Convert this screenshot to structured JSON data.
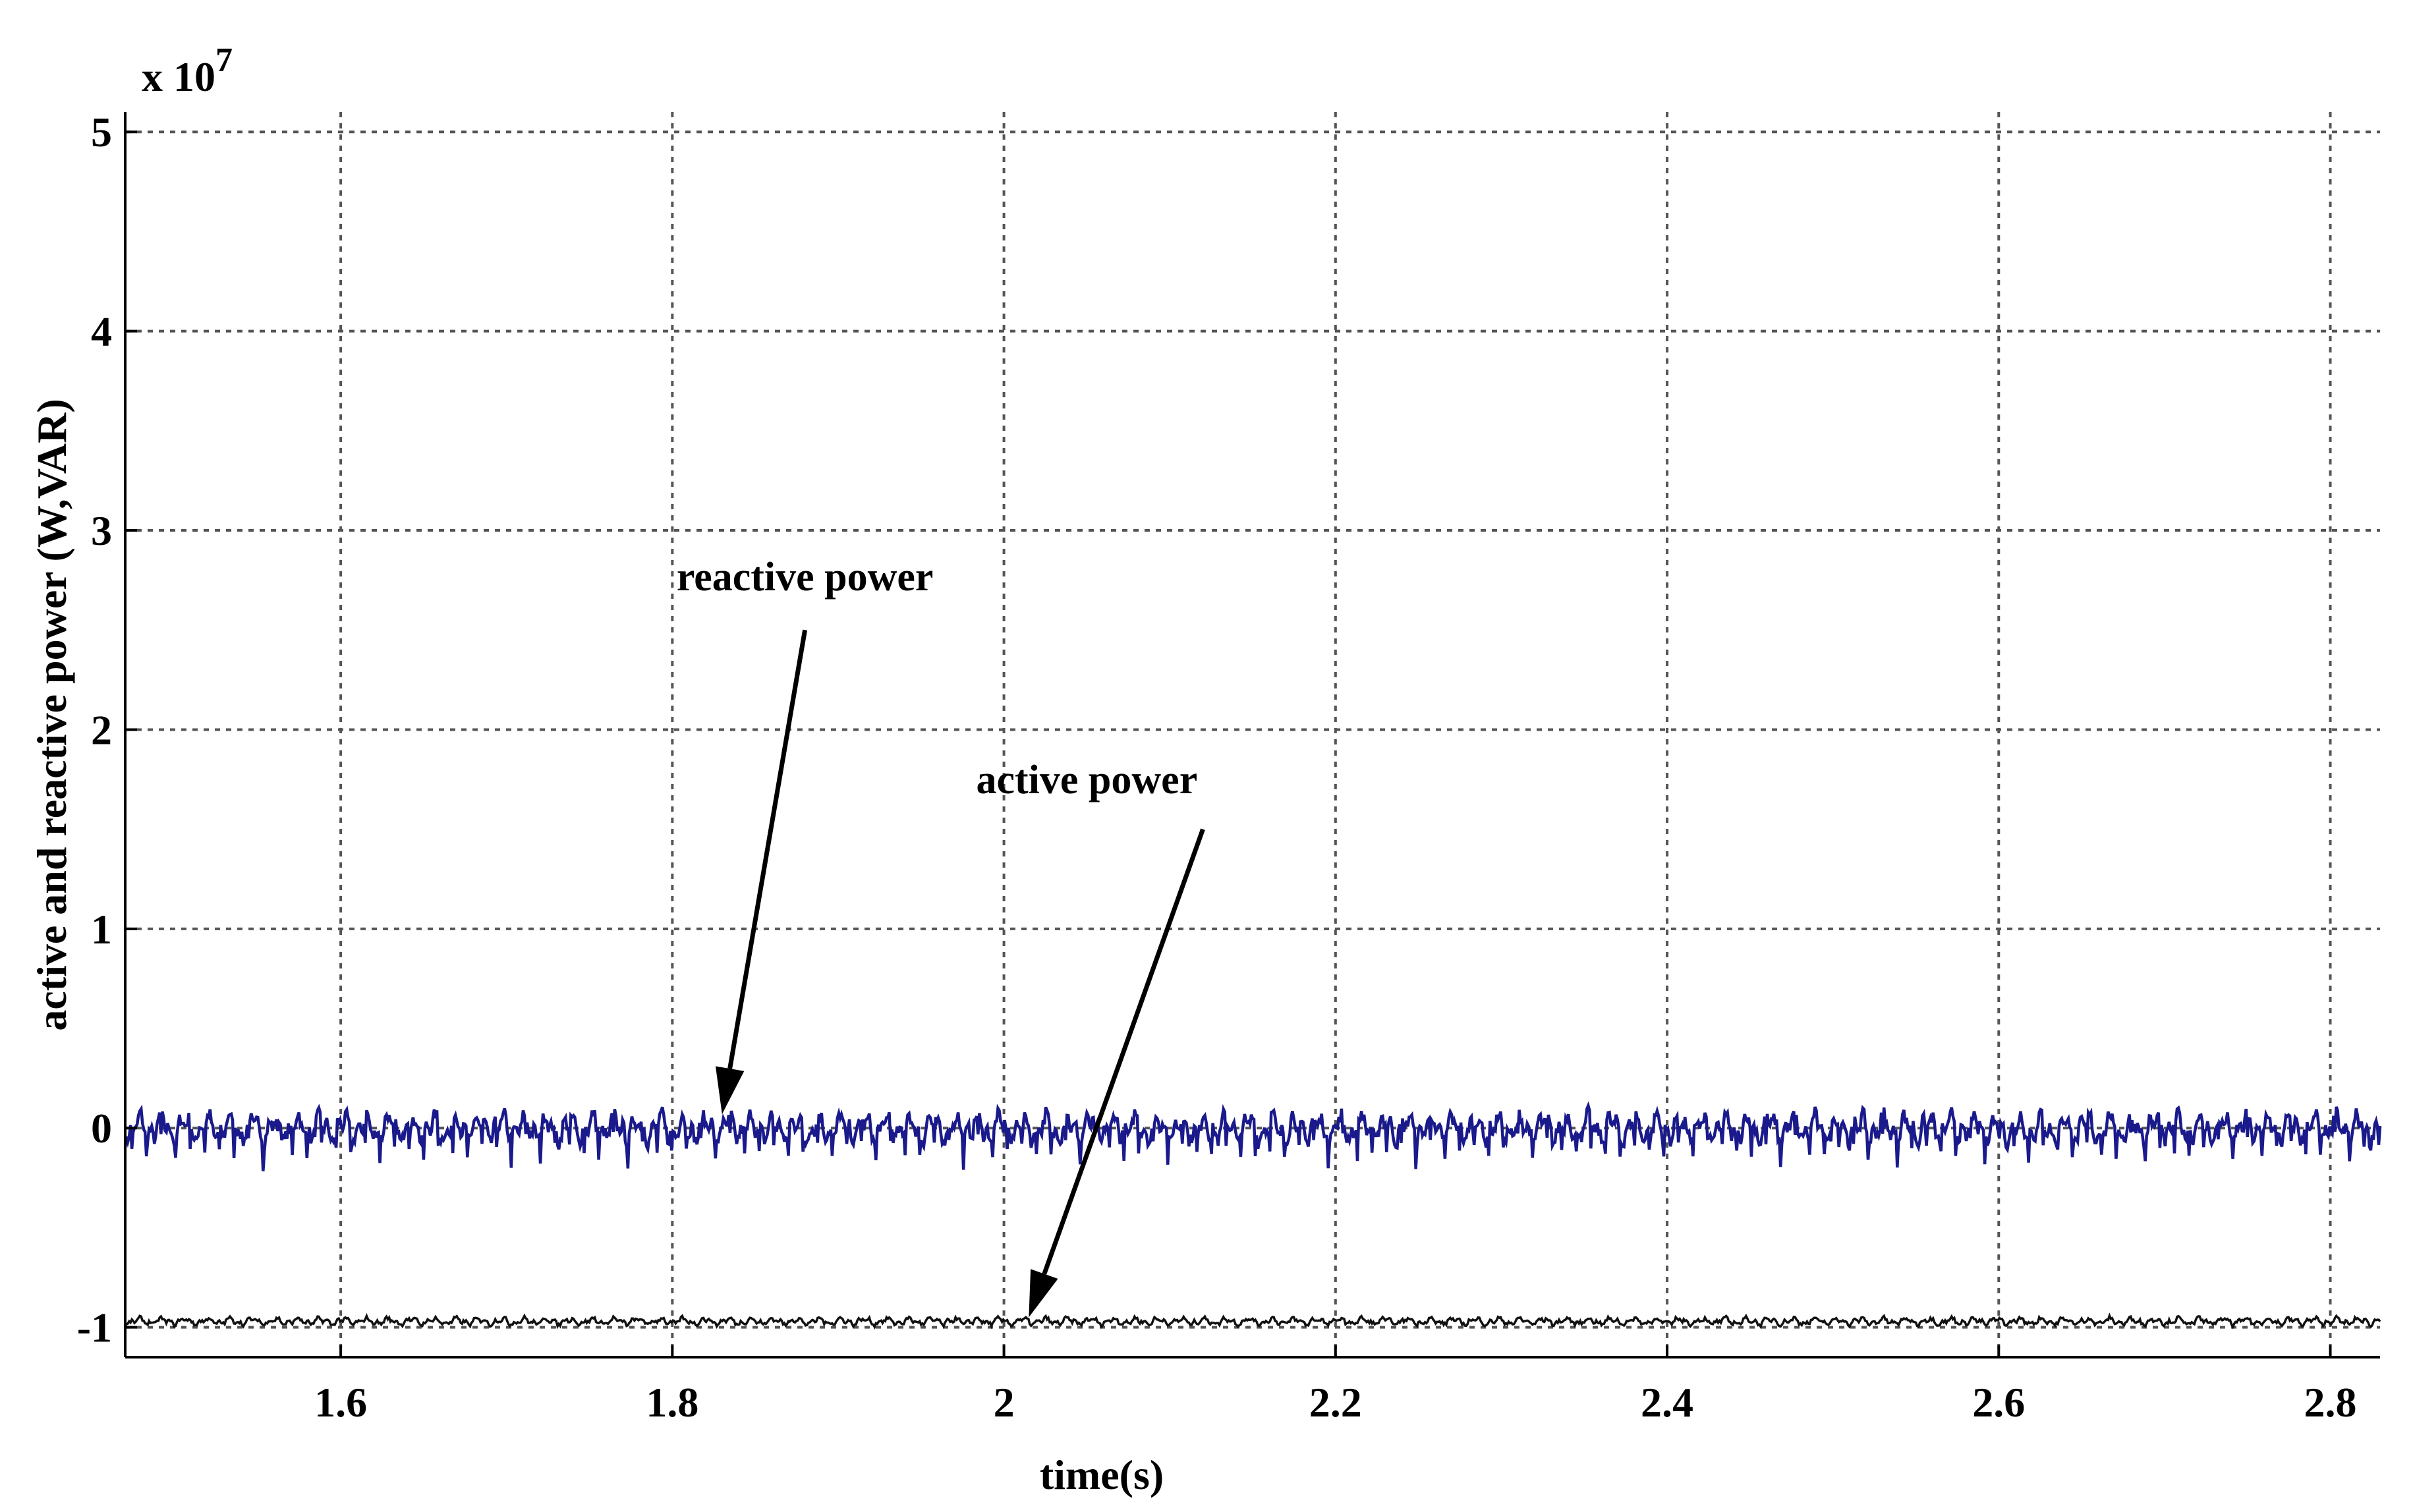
{
  "chart_data": {
    "type": "line",
    "title": "",
    "xlabel": "time(s)",
    "ylabel": "active and reactive power (W,VAR)",
    "y_multiplier": "x 10",
    "y_multiplier_exp": "7",
    "xlim": [
      1.47,
      2.83
    ],
    "ylim": [
      -1.15,
      5.1
    ],
    "xticks": [
      1.6,
      1.8,
      2,
      2.2,
      2.4,
      2.6,
      2.8
    ],
    "xtick_labels": [
      "1.6",
      "1.8",
      "2",
      "2.2",
      "2.4",
      "2.6",
      "2.8"
    ],
    "yticks": [
      -1,
      0,
      1,
      2,
      3,
      4,
      5
    ],
    "ytick_labels": [
      "-1",
      "0",
      "1",
      "2",
      "3",
      "4",
      "5"
    ],
    "grid": true,
    "series": [
      {
        "name": "reactive power",
        "color": "#1a1a8c",
        "mean": 0,
        "ripple": 0.1,
        "x_start": 1.47,
        "x_end": 2.83
      },
      {
        "name": "active power",
        "color": "#111111",
        "mean": -0.97,
        "ripple": 0.025,
        "x_start": 1.47,
        "x_end": 2.83
      }
    ],
    "annotations": [
      {
        "text": "reactive power",
        "text_x": 1.88,
        "text_y": 2.7,
        "arrow_from": [
          1.88,
          2.5
        ],
        "arrow_to": [
          1.83,
          0.07
        ]
      },
      {
        "text": "active power",
        "text_x": 2.05,
        "text_y": 1.68,
        "arrow_from": [
          2.12,
          1.5
        ],
        "arrow_to": [
          2.015,
          -0.95
        ]
      }
    ]
  }
}
